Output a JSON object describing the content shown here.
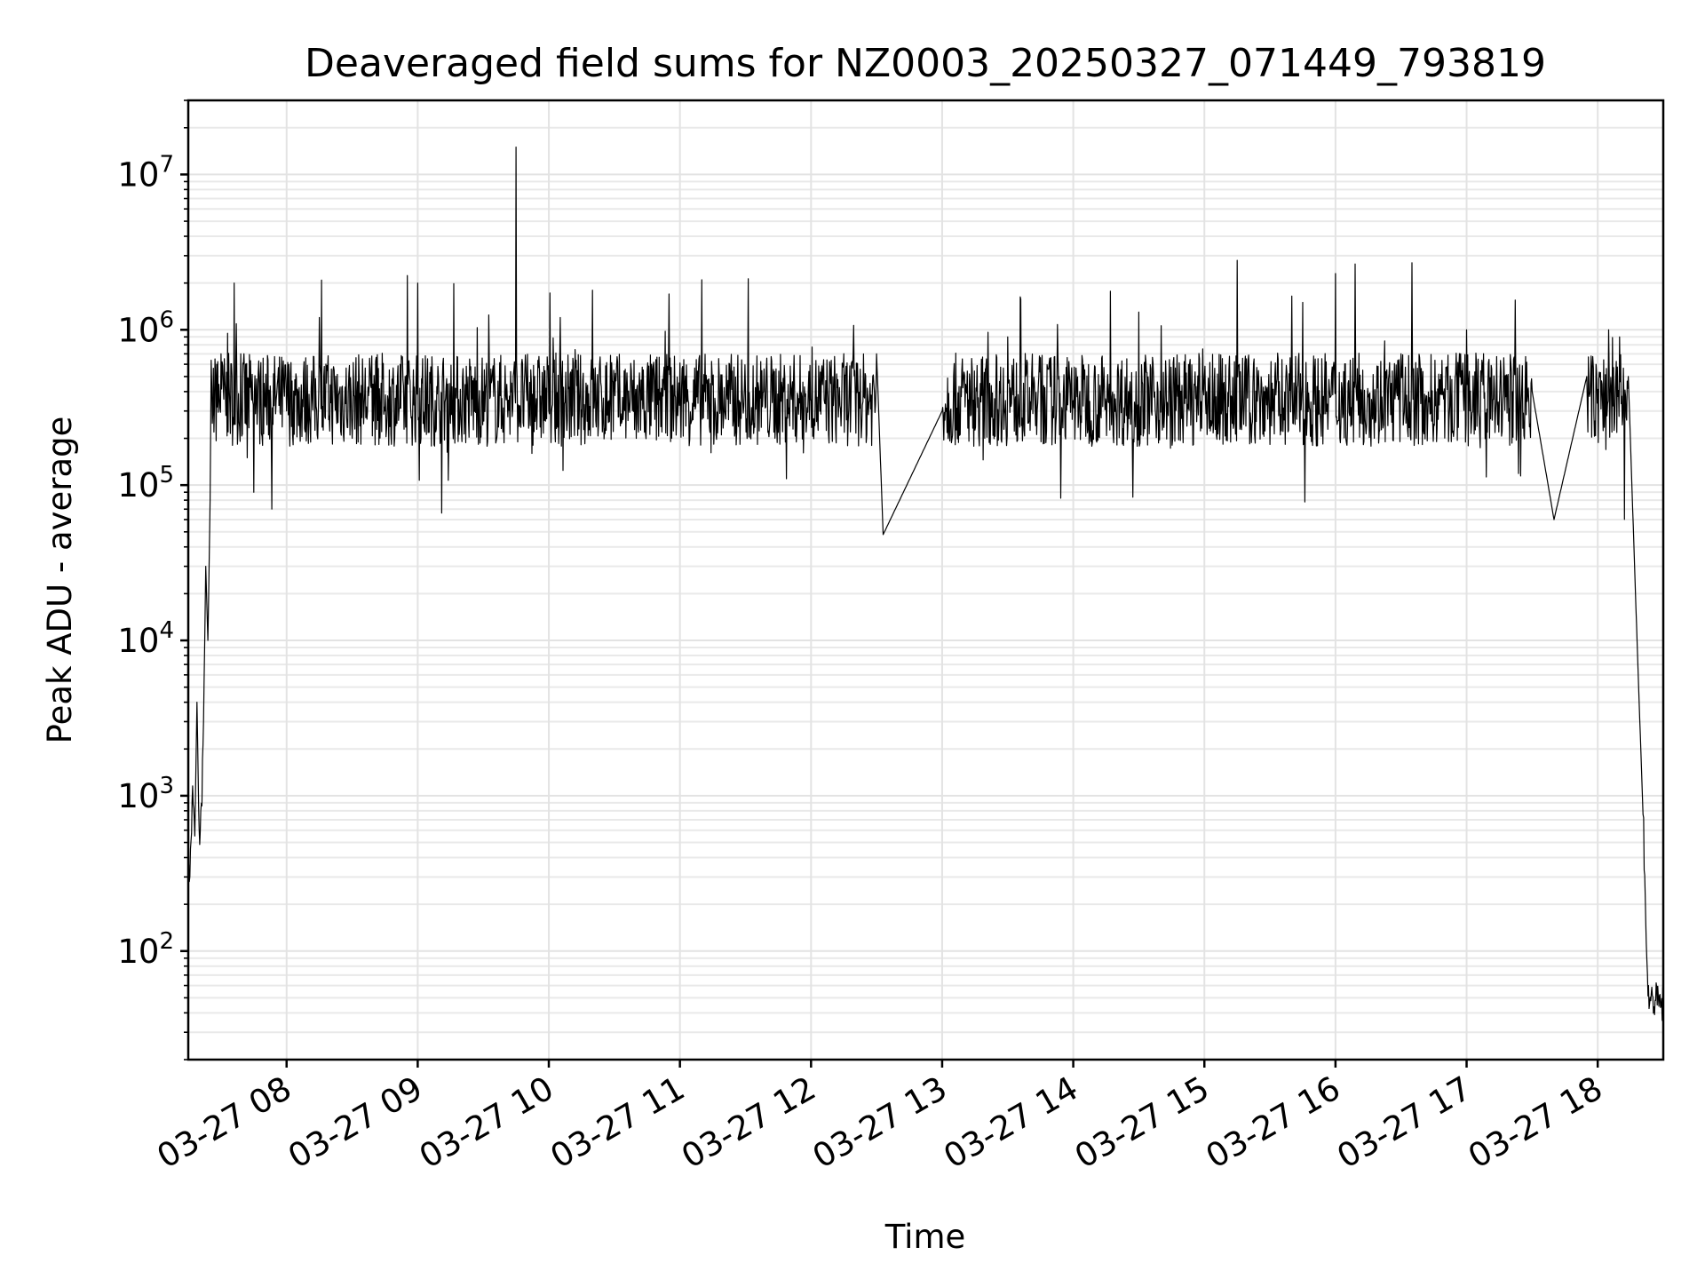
{
  "chart_data": {
    "type": "line",
    "title": "Deaveraged field sums for NZ0003_20250327_071449_793819",
    "xlabel": "Time",
    "ylabel": "Peak ADU - average",
    "yscale": "log",
    "ylim": [
      20,
      30000000
    ],
    "xlim": [
      "2025-03-27 07:15",
      "2025-03-27 18:30"
    ],
    "grid": true,
    "line_color": "#000000",
    "x_ticks": [
      {
        "x": "2025-03-27 08:00",
        "label": "03-27 08"
      },
      {
        "x": "2025-03-27 09:00",
        "label": "03-27 09"
      },
      {
        "x": "2025-03-27 10:00",
        "label": "03-27 10"
      },
      {
        "x": "2025-03-27 11:00",
        "label": "03-27 11"
      },
      {
        "x": "2025-03-27 12:00",
        "label": "03-27 12"
      },
      {
        "x": "2025-03-27 13:00",
        "label": "03-27 13"
      },
      {
        "x": "2025-03-27 14:00",
        "label": "03-27 14"
      },
      {
        "x": "2025-03-27 15:00",
        "label": "03-27 15"
      },
      {
        "x": "2025-03-27 16:00",
        "label": "03-27 16"
      },
      {
        "x": "2025-03-27 17:00",
        "label": "03-27 17"
      },
      {
        "x": "2025-03-27 18:00",
        "label": "03-27 18"
      }
    ],
    "y_ticks": [
      {
        "value": 100,
        "base": "10",
        "exp": "2"
      },
      {
        "value": 1000,
        "base": "10",
        "exp": "3"
      },
      {
        "value": 10000,
        "base": "10",
        "exp": "4"
      },
      {
        "value": 100000,
        "base": "10",
        "exp": "5"
      },
      {
        "value": 1000000,
        "base": "10",
        "exp": "6"
      },
      {
        "value": 10000000,
        "base": "10",
        "exp": "7"
      }
    ],
    "series": [
      {
        "points": [
          [
            "2025-03-27 07:15",
            250
          ],
          [
            "2025-03-27 07:16",
            400
          ],
          [
            "2025-03-27 07:17",
            1000
          ],
          [
            "2025-03-27 07:18",
            550
          ],
          [
            "2025-03-27 07:19",
            4000
          ],
          [
            "2025-03-27 07:20",
            500
          ],
          [
            "2025-03-27 07:21",
            800
          ],
          [
            "2025-03-27 07:22",
            3000
          ],
          [
            "2025-03-27 07:23",
            30000
          ],
          [
            "2025-03-27 07:24",
            10000
          ],
          [
            "2025-03-27 07:25",
            80000
          ],
          [
            "2025-03-27 07:26",
            250000
          ],
          [
            "2025-03-27 07:28",
            600000
          ],
          [
            "2025-03-27 07:30",
            700000
          ],
          [
            "2025-03-27 07:33",
            950000
          ],
          [
            "2025-03-27 07:36",
            2000000
          ],
          [
            "2025-03-27 07:39",
            700000
          ],
          [
            "2025-03-27 07:42",
            150000
          ],
          [
            "2025-03-27 07:45",
            90000
          ],
          [
            "2025-03-27 07:48",
            500000
          ],
          [
            "2025-03-27 08:00",
            300000
          ],
          [
            "2025-03-27 08:15",
            1200000
          ],
          [
            "2025-03-27 08:30",
            200000
          ],
          [
            "2025-03-27 08:45",
            300000
          ],
          [
            "2025-03-27 09:00",
            2000000
          ],
          [
            "2025-03-27 09:15",
            250000
          ],
          [
            "2025-03-27 09:30",
            400000
          ],
          [
            "2025-03-27 09:45",
            15000000
          ],
          [
            "2025-03-27 09:50",
            350000
          ],
          [
            "2025-03-27 10:00",
            300000
          ],
          [
            "2025-03-27 10:20",
            1800000
          ],
          [
            "2025-03-27 10:40",
            200000
          ],
          [
            "2025-03-27 10:55",
            1700000
          ],
          [
            "2025-03-27 11:10",
            2100000
          ],
          [
            "2025-03-27 11:30",
            400000
          ],
          [
            "2025-03-27 12:00",
            350000
          ],
          [
            "2025-03-27 12:30",
            700000
          ],
          [
            "2025-03-27 12:33",
            48000
          ],
          [
            "2025-03-27 13:00",
            300000
          ],
          [
            "2025-03-27 13:30",
            900000
          ],
          [
            "2025-03-27 14:00",
            350000
          ],
          [
            "2025-03-27 14:30",
            1300000
          ],
          [
            "2025-03-27 15:00",
            500000
          ],
          [
            "2025-03-27 15:15",
            2800000
          ],
          [
            "2025-03-27 15:45",
            1500000
          ],
          [
            "2025-03-27 16:00",
            2300000
          ],
          [
            "2025-03-27 16:30",
            700000
          ],
          [
            "2025-03-27 16:35",
            2700000
          ],
          [
            "2025-03-27 17:00",
            1000000
          ],
          [
            "2025-03-27 17:30",
            400000
          ],
          [
            "2025-03-27 17:40",
            60000
          ],
          [
            "2025-03-27 17:55",
            500000
          ],
          [
            "2025-03-27 18:05",
            1000000
          ],
          [
            "2025-03-27 18:10",
            900000
          ],
          [
            "2025-03-27 18:14",
            500000
          ],
          [
            "2025-03-27 18:18",
            10000
          ],
          [
            "2025-03-27 18:21",
            600
          ],
          [
            "2025-03-27 18:23",
            50
          ],
          [
            "2025-03-27 18:30",
            45
          ]
        ]
      }
    ]
  }
}
